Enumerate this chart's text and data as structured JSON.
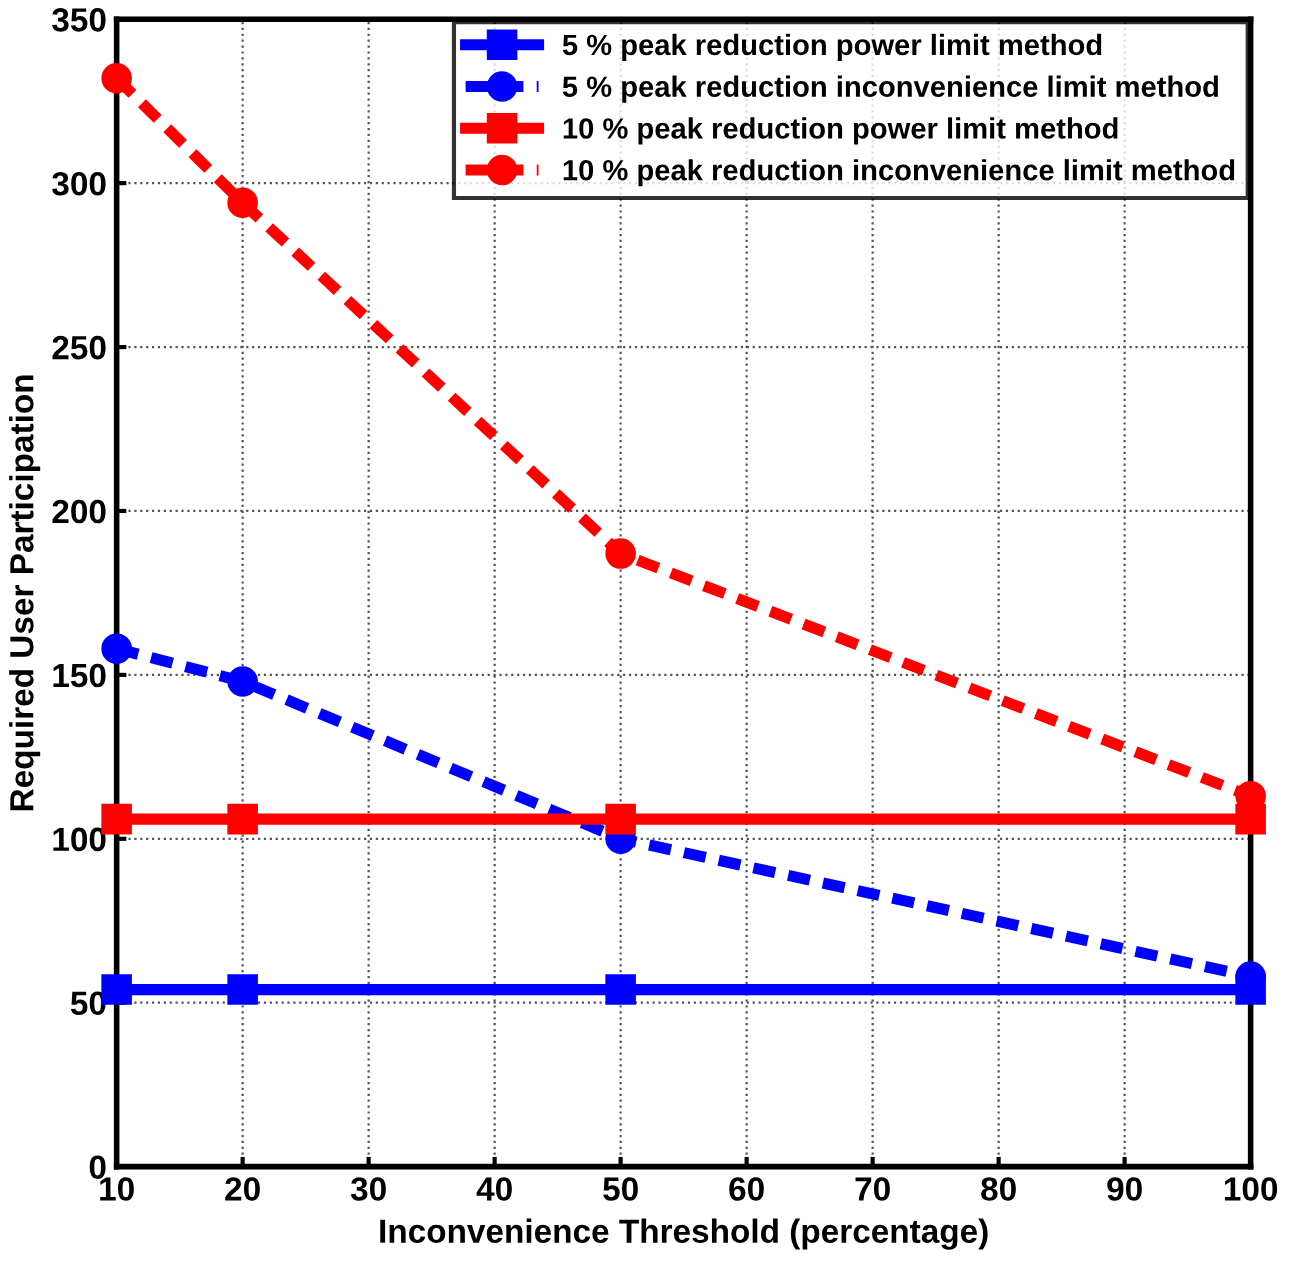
{
  "chart_data": {
    "type": "line",
    "xlabel": "Inconvenience Threshold (percentage)",
    "ylabel": "Required User Participation",
    "x": [
      10,
      20,
      50,
      100
    ],
    "series": [
      {
        "name": "5 % peak reduction power limit method",
        "color": "#0000ff",
        "values": [
          54,
          54,
          54,
          54
        ],
        "marker": "square",
        "line_style": "solid"
      },
      {
        "name": "5 % peak reduction inconvenience limit method",
        "color": "#0000ff",
        "values": [
          158,
          148,
          100,
          58
        ],
        "marker": "circle",
        "line_style": "dashed"
      },
      {
        "name": "10 % peak reduction power limit method",
        "color": "#ff0000",
        "values": [
          106,
          106,
          106,
          106
        ],
        "marker": "square",
        "line_style": "solid"
      },
      {
        "name": "10 % peak reduction inconvenience limit method",
        "color": "#ff0000",
        "values": [
          332,
          294,
          187,
          113
        ],
        "marker": "circle",
        "line_style": "dashed"
      }
    ],
    "xlim": [
      10,
      100
    ],
    "xticks": [
      10,
      20,
      30,
      40,
      50,
      60,
      70,
      80,
      90,
      100
    ],
    "ylim": [
      0,
      350
    ],
    "yticks": [
      0,
      50,
      100,
      150,
      200,
      250,
      300,
      350
    ],
    "grid": true,
    "legend": "top right"
  }
}
